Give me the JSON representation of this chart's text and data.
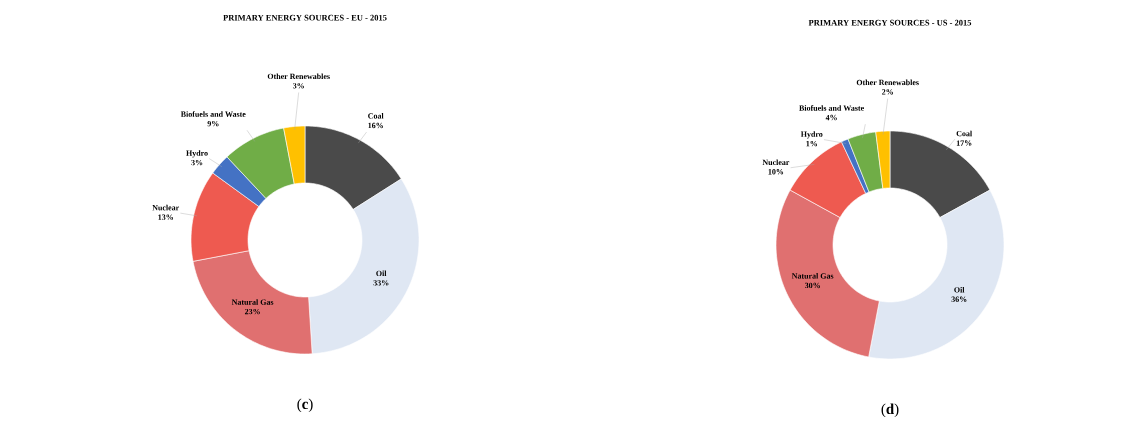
{
  "chart_data": [
    {
      "type": "donut",
      "title": "PRIMARY ENERGY SOURCES - EU - 2015",
      "categories": [
        "Coal",
        "Oil",
        "Natural Gas",
        "Nuclear",
        "Hydro",
        "Biofuels and Waste",
        "Other Renewables"
      ],
      "values": [
        16,
        33,
        23,
        13,
        3,
        9,
        3
      ],
      "value_labels": [
        "16%",
        "33%",
        "23%",
        "13%",
        "3%",
        "9%",
        "3%"
      ],
      "colors": [
        "#4a4a4a",
        "#dfe7f3",
        "#e07070",
        "#ee5a50",
        "#4472c4",
        "#70ad47",
        "#ffc000"
      ],
      "annotations": [
        "(**c**)"
      ]
    },
    {
      "type": "donut",
      "title": "PRIMARY ENERGY SOURCES - US - 2015",
      "categories": [
        "Coal",
        "Oil",
        "Natural Gas",
        "Nuclear",
        "Hydro",
        "Biofuels and Waste",
        "Other Renewables"
      ],
      "values": [
        17,
        36,
        30,
        10,
        1,
        4,
        2
      ],
      "value_labels": [
        "17%",
        "36%",
        "30%",
        "10%",
        "1%",
        "4%",
        "2%"
      ],
      "colors": [
        "#4a4a4a",
        "#dfe7f3",
        "#e07070",
        "#ee5a50",
        "#4472c4",
        "#70ad47",
        "#ffc000"
      ],
      "annotations": [
        "(**d**)"
      ]
    }
  ]
}
